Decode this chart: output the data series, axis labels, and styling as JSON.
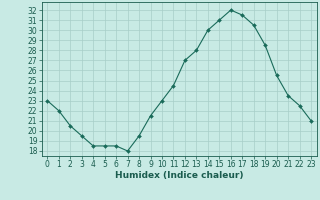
{
  "x": [
    0,
    1,
    2,
    3,
    4,
    5,
    6,
    7,
    8,
    9,
    10,
    11,
    12,
    13,
    14,
    15,
    16,
    17,
    18,
    19,
    20,
    21,
    22,
    23
  ],
  "y": [
    23,
    22,
    20.5,
    19.5,
    18.5,
    18.5,
    18.5,
    18,
    19.5,
    21.5,
    23,
    24.5,
    27,
    28,
    30,
    31,
    32,
    31.5,
    30.5,
    28.5,
    25.5,
    23.5,
    22.5,
    21
  ],
  "line_color": "#1a6b5a",
  "marker": "D",
  "marker_size": 2,
  "bg_color": "#c8eae4",
  "grid_color": "#a8cec8",
  "xlabel": "Humidex (Indice chaleur)",
  "ylim": [
    17.5,
    32.8
  ],
  "xlim": [
    -0.5,
    23.5
  ],
  "yticks": [
    18,
    19,
    20,
    21,
    22,
    23,
    24,
    25,
    26,
    27,
    28,
    29,
    30,
    31,
    32
  ],
  "xticks": [
    0,
    1,
    2,
    3,
    4,
    5,
    6,
    7,
    8,
    9,
    10,
    11,
    12,
    13,
    14,
    15,
    16,
    17,
    18,
    19,
    20,
    21,
    22,
    23
  ],
  "tick_color": "#1a5c4e",
  "label_fontsize": 6.5,
  "tick_fontsize": 5.5
}
